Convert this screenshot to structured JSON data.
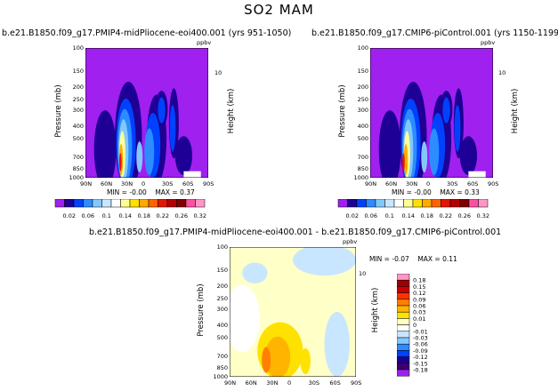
{
  "title": "SO2 MAM",
  "chart_data": [
    {
      "type": "heatmap",
      "title": "b.e21.B1850.f09_g17.PMIP4-midPliocene-eoi400.001 (yrs 951-1050)",
      "units": "ppbv",
      "xlabel": "",
      "ylabel": "Pressure (mb)",
      "ylabel_right": "Height (km)",
      "x_ticks": [
        "90N",
        "60N",
        "30N",
        "0",
        "30S",
        "60S",
        "90S"
      ],
      "y_ticks": [
        "100",
        "150",
        "200",
        "250",
        "300",
        "400",
        "500",
        "700",
        "850",
        "1000"
      ],
      "right_ticks": [
        "10"
      ],
      "min_label": "MIN =",
      "min": "-0.00",
      "max_label": "MAX =",
      "max": "0.37"
    },
    {
      "type": "heatmap",
      "title": "b.e21.B1850.f09_g17.CMIP6-piControl.001 (yrs 1150-1199)",
      "units": "ppbv",
      "xlabel": "",
      "ylabel": "Pressure (mb)",
      "ylabel_right": "Height (km)",
      "x_ticks": [
        "90N",
        "60N",
        "30N",
        "0",
        "30S",
        "60S",
        "90S"
      ],
      "y_ticks": [
        "100",
        "150",
        "200",
        "250",
        "300",
        "400",
        "500",
        "700",
        "850",
        "1000"
      ],
      "right_ticks": [
        "10"
      ],
      "min_label": "MIN =",
      "min": "-0.00",
      "max_label": "MAX =",
      "max": "0.33"
    },
    {
      "type": "heatmap",
      "title": "b.e21.B1850.f09_g17.PMIP4-midPliocene-eoi400.001 - b.e21.B1850.f09_g17.CMIP6-piControl.001",
      "units": "ppbv",
      "xlabel": "",
      "ylabel": "Pressure (mb)",
      "ylabel_right": "Height (km)",
      "x_ticks": [
        "90N",
        "60N",
        "30N",
        "0",
        "30S",
        "60S",
        "90S"
      ],
      "y_ticks": [
        "100",
        "150",
        "200",
        "250",
        "300",
        "400",
        "500",
        "700",
        "850",
        "1000"
      ],
      "right_ticks": [
        "10"
      ],
      "min_label": "MIN =",
      "min": "-0.07",
      "max_label": "MAX =",
      "max": "0.11"
    }
  ],
  "colorbar_abs": {
    "labels": [
      "0.02",
      "0.06",
      "0.1",
      "0.14",
      "0.18",
      "0.22",
      "0.26",
      "0.32"
    ],
    "colors": [
      "#a020f0",
      "#1e0096",
      "#0041ff",
      "#2d8cff",
      "#82c8ff",
      "#c8e6ff",
      "#ffffff",
      "#ffff96",
      "#ffe100",
      "#ffaa00",
      "#ff6400",
      "#e61400",
      "#b40000",
      "#800000",
      "#ff4fa0",
      "#ff96c8"
    ]
  },
  "colorbar_diff": {
    "labels": [
      "0.18",
      "0.15",
      "0.12",
      "0.09",
      "0.06",
      "0.03",
      "0.01",
      "0",
      "-0.01",
      "-0.03",
      "-0.06",
      "-0.09",
      "-0.12",
      "-0.15",
      "-0.18"
    ],
    "colors": [
      "#ff96c8",
      "#a00000",
      "#cc0000",
      "#ff3300",
      "#ff8000",
      "#ffb400",
      "#ffe100",
      "#ffffc8",
      "#ffffff",
      "#c8e6ff",
      "#82c8ff",
      "#2d8cff",
      "#0041ff",
      "#1e0096",
      "#3c006e",
      "#a020f0"
    ]
  }
}
